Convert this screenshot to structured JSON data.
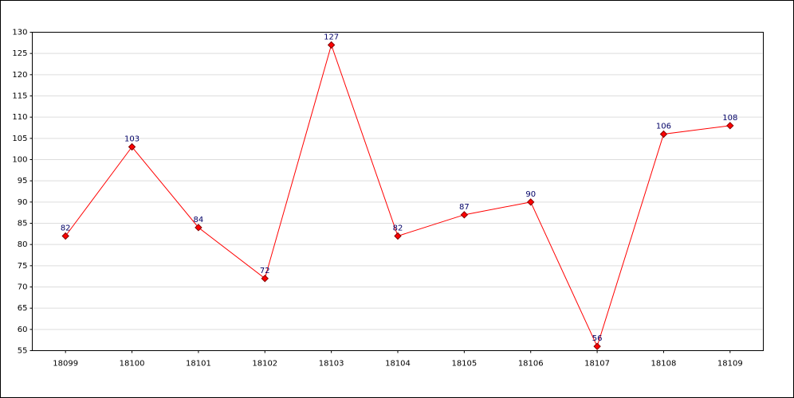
{
  "chart_data": {
    "type": "line",
    "categories": [
      "18099",
      "18100",
      "18101",
      "18102",
      "18103",
      "18104",
      "18105",
      "18106",
      "18107",
      "18108",
      "18109"
    ],
    "values": [
      82,
      103,
      84,
      72,
      127,
      82,
      87,
      90,
      56,
      106,
      108
    ],
    "color": "#ff0000",
    "ylim": [
      55,
      130
    ],
    "yticks": [
      55,
      60,
      65,
      70,
      75,
      80,
      85,
      90,
      95,
      100,
      105,
      110,
      115,
      120,
      125,
      130
    ],
    "grid": true
  }
}
